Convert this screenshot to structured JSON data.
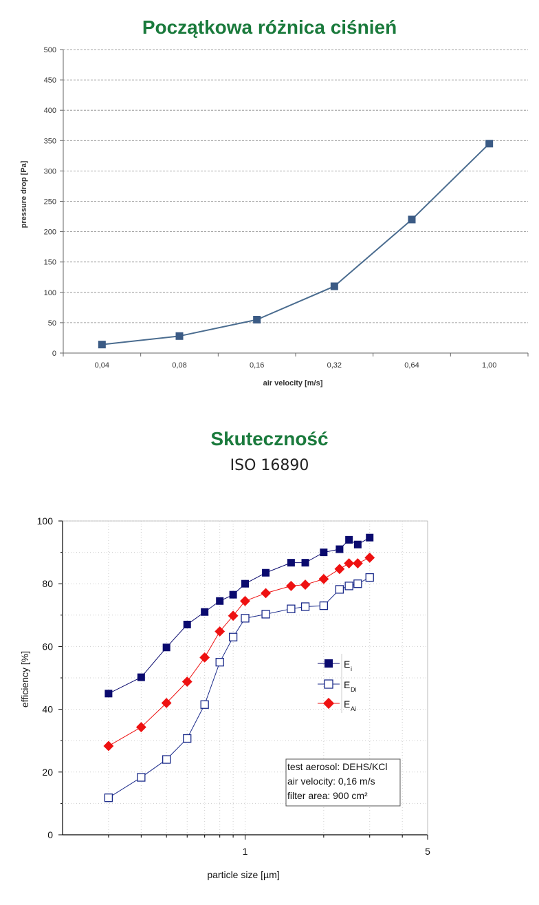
{
  "colors": {
    "title": "#1a7a3c",
    "line1": "#4a6c8f",
    "marker1": "#3b5b85",
    "ei": "#0a0a6e",
    "edi": "#1a2a8a",
    "eai": "#ee1111"
  },
  "chart_data": [
    {
      "type": "line",
      "title": "Początkowa różnica ciśnień",
      "xlabel": "air velocity [m/s]",
      "ylabel": "pressure drop [Pa]",
      "categories": [
        "0,04",
        "0,08",
        "0,16",
        "0,32",
        "0,64",
        "1,00"
      ],
      "values": [
        14,
        28,
        55,
        110,
        220,
        345
      ],
      "ylim": [
        0,
        500
      ],
      "yticks": [
        "0",
        "50",
        "100",
        "150",
        "200",
        "250",
        "300",
        "350",
        "400",
        "450",
        "500"
      ],
      "grid": true
    },
    {
      "type": "scatter",
      "title": "Skuteczność",
      "subtitle": "ISO 16890",
      "xlabel": "particle size [µm]",
      "ylabel": "efficiency [%]",
      "xscale": "log",
      "xlim": [
        0.2,
        5
      ],
      "ylim": [
        0,
        100
      ],
      "xticks": [
        {
          "v": 1,
          "label": "1"
        },
        {
          "v": 5,
          "label": "5"
        }
      ],
      "yticks": [
        "0",
        "20",
        "40",
        "60",
        "80",
        "100"
      ],
      "legend": "right",
      "series": [
        {
          "name": "E",
          "sub": "i",
          "marker": "filled-square",
          "x": [
            0.3,
            0.4,
            0.5,
            0.6,
            0.7,
            0.8,
            0.9,
            1.0,
            1.2,
            1.5,
            1.7,
            2.0,
            2.3,
            2.5,
            2.7,
            3.0
          ],
          "y": [
            45,
            50.2,
            59.7,
            67,
            71,
            74.5,
            76.5,
            80,
            83.5,
            86.7,
            86.7,
            90,
            91,
            94,
            92.5,
            94.7
          ]
        },
        {
          "name": "E",
          "sub": "Di",
          "marker": "open-square",
          "x": [
            0.3,
            0.4,
            0.5,
            0.6,
            0.7,
            0.8,
            0.9,
            1.0,
            1.2,
            1.5,
            1.7,
            2.0,
            2.3,
            2.5,
            2.7,
            3.0
          ],
          "y": [
            11.8,
            18.3,
            24,
            30.7,
            41.5,
            55,
            63,
            69,
            70.3,
            72,
            72.7,
            73,
            78.2,
            79.3,
            80,
            82
          ]
        },
        {
          "name": "E",
          "sub": "Ai",
          "marker": "diamond",
          "x": [
            0.3,
            0.4,
            0.5,
            0.6,
            0.7,
            0.8,
            0.9,
            1.0,
            1.2,
            1.5,
            1.7,
            2.0,
            2.3,
            2.5,
            2.7,
            3.0
          ],
          "y": [
            28.3,
            34.3,
            42,
            48.8,
            56.5,
            64.8,
            69.8,
            74.5,
            77,
            79.3,
            79.7,
            81.5,
            84.7,
            86.5,
            86.5,
            88.3
          ]
        }
      ],
      "annotations": [
        "test aerosol: DEHS/KCl",
        "air velocity: 0,16 m/s",
        "filter area: 900 cm²"
      ]
    }
  ]
}
